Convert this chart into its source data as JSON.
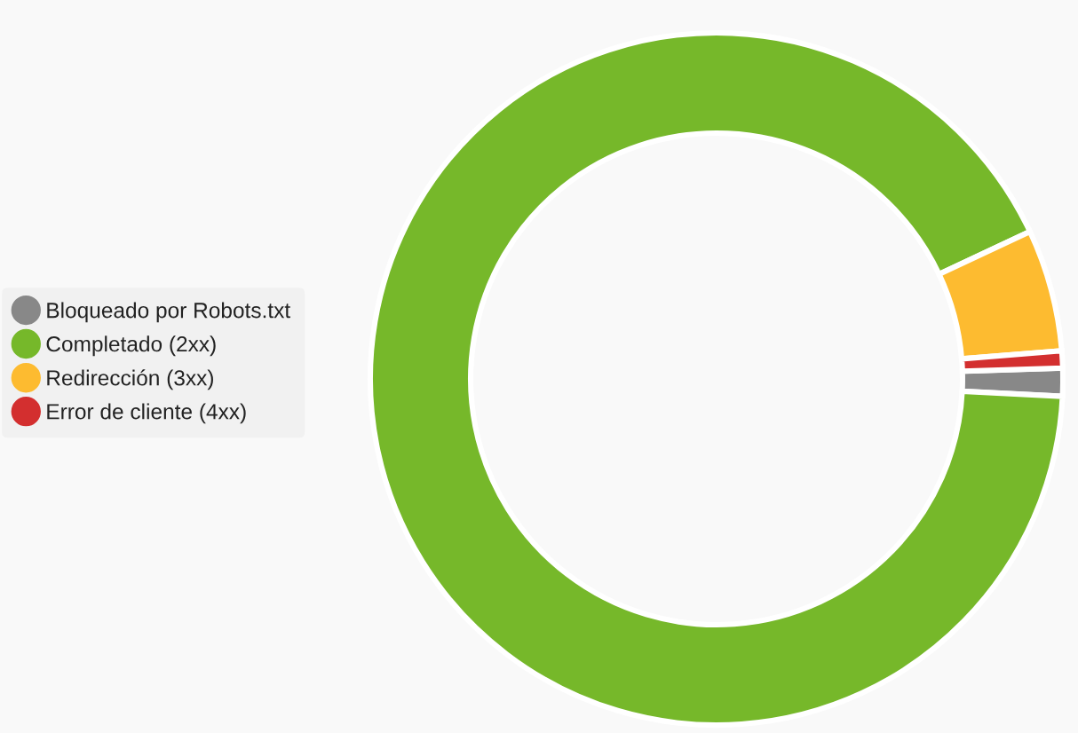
{
  "chart_data": {
    "type": "donut",
    "categories": [
      "Bloqueado por Robots.txt",
      "Completado (2xx)",
      "Redirección (3xx)",
      "Error de cliente (4xx)"
    ],
    "values": [
      1.3,
      92.2,
      5.7,
      0.8
    ],
    "colors": [
      "#888888",
      "#76b82a",
      "#fdbb30",
      "#d32f2f"
    ],
    "legend": "left"
  }
}
